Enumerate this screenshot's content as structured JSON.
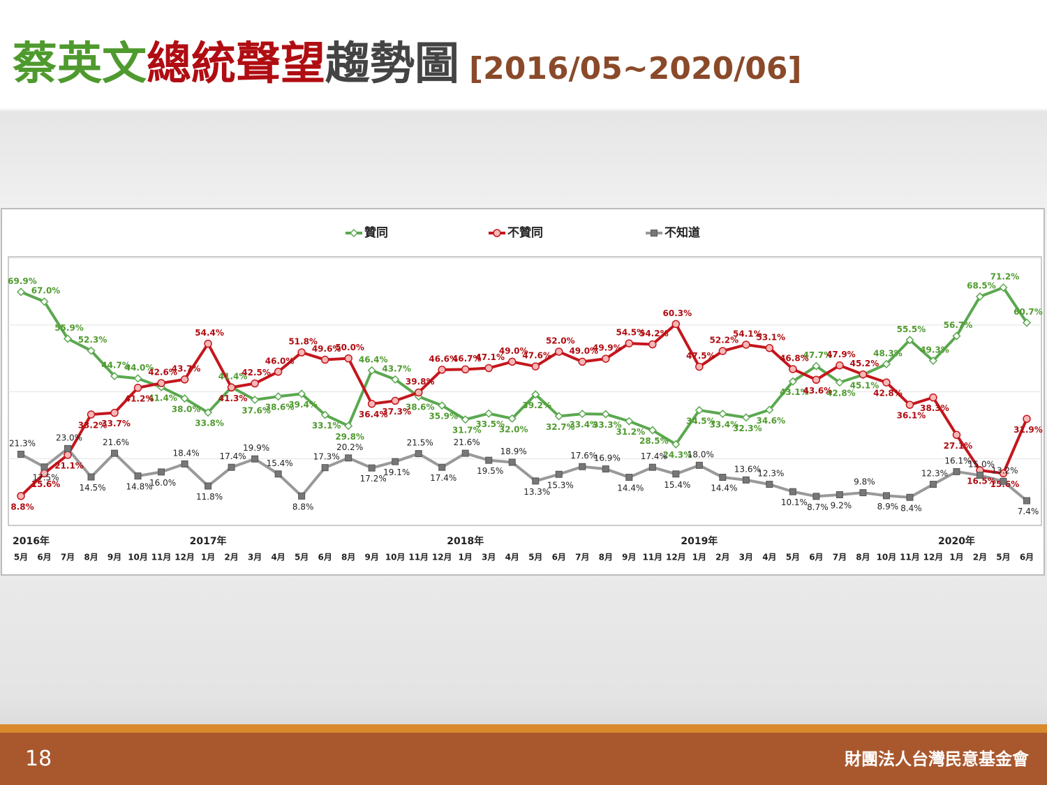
{
  "header": {
    "title_part1": "蔡英文",
    "title_part2": "總統聲望",
    "title_part3": "趨勢圖",
    "title_range": "[2016/05~2020/06]"
  },
  "footer": {
    "page_number": "18",
    "organization": "財團法人台灣民意基金會"
  },
  "chart_data": {
    "type": "line",
    "categories": [
      "5月",
      "6月",
      "7月",
      "8月",
      "9月",
      "10月",
      "11月",
      "12月",
      "1月",
      "2月",
      "3月",
      "4月",
      "5月",
      "6月",
      "8月",
      "9月",
      "10月",
      "11月",
      "12月",
      "1月",
      "3月",
      "4月",
      "5月",
      "6月",
      "7月",
      "8月",
      "9月",
      "11月",
      "12月",
      "1月",
      "2月",
      "3月",
      "4月",
      "5月",
      "6月",
      "7月",
      "8月",
      "10月",
      "11月",
      "12月",
      "1月",
      "2月",
      "5月",
      "6月"
    ],
    "years": [
      "2016年",
      null,
      null,
      null,
      null,
      null,
      null,
      null,
      "2017年",
      null,
      null,
      null,
      null,
      null,
      null,
      null,
      null,
      null,
      null,
      "2018年",
      null,
      null,
      null,
      null,
      null,
      null,
      null,
      null,
      null,
      "2019年",
      null,
      null,
      null,
      null,
      null,
      null,
      null,
      null,
      null,
      null,
      "2020年",
      null,
      null,
      null
    ],
    "ylim": [
      0,
      80
    ],
    "yticks": [
      20,
      40,
      60,
      80
    ],
    "grid": true,
    "legend": "top",
    "series": [
      {
        "name": "贊同",
        "color": "#5aa84f",
        "marker": "diamond",
        "values": [
          69.9,
          67.0,
          55.9,
          52.3,
          44.7,
          44.0,
          41.4,
          38.0,
          33.8,
          41.4,
          37.6,
          38.6,
          39.4,
          33.1,
          29.8,
          46.4,
          43.7,
          38.6,
          35.9,
          31.7,
          33.5,
          32.0,
          39.2,
          32.7,
          33.4,
          33.3,
          31.2,
          28.5,
          24.3,
          34.5,
          33.4,
          32.3,
          34.6,
          43.1,
          47.7,
          42.8,
          45.1,
          48.3,
          55.5,
          49.3,
          56.7,
          68.5,
          71.2,
          60.7
        ],
        "value_labels": [
          "69.9%",
          "67.0%",
          "55.9%",
          "52.3%",
          "44.7%",
          "44.0%",
          "41.4%",
          "38.0%",
          "33.8%",
          "41.4%",
          "37.6%",
          "38.6%",
          "39.4%",
          "33.1%",
          "29.8%",
          "46.4%",
          "43.7%",
          "38.6%",
          "35.9%",
          "31.7%",
          "33.5%",
          "32.0%",
          "39.2%",
          "32.7%",
          "33.4%",
          "33.3%",
          "31.2%",
          "28.5%",
          "24.3%",
          "34.5%",
          "33.4%",
          "32.3%",
          "34.6%",
          "43.1%",
          "47.7%",
          "42.8%",
          "45.1%",
          "48.3%",
          "55.5%",
          "49.3%",
          "56.7%",
          "68.5%",
          "71.2%",
          "60.7%"
        ]
      },
      {
        "name": "不贊同",
        "color": "#c4161c",
        "marker": "circle",
        "values": [
          8.8,
          15.6,
          21.1,
          33.2,
          33.7,
          41.2,
          42.6,
          43.7,
          54.4,
          41.3,
          42.5,
          46.0,
          51.8,
          49.6,
          50.0,
          36.4,
          37.3,
          39.8,
          46.6,
          46.7,
          47.1,
          49.0,
          47.6,
          52.0,
          49.0,
          49.9,
          54.5,
          54.2,
          60.3,
          47.5,
          52.2,
          54.1,
          53.1,
          46.8,
          43.6,
          47.9,
          45.2,
          42.8,
          36.1,
          38.3,
          27.1,
          16.5,
          15.6,
          31.9
        ],
        "value_labels": [
          "8.8%",
          "15.6%",
          "21.1%",
          "33.2%",
          "33.7%",
          "41.2%",
          "42.6%",
          "43.7%",
          "54.4%",
          "41.3%",
          "42.5%",
          "46.0%",
          "51.8%",
          "49.6%",
          "50.0%",
          "36.4%",
          "37.3%",
          "39.8%",
          "46.6%",
          "46.7%",
          "47.1%",
          "49.0%",
          "47.6%",
          "52.0%",
          "49.0%",
          "49.9%",
          "54.5%",
          "54.2%",
          "60.3%",
          "47.5%",
          "52.2%",
          "54.1%",
          "53.1%",
          "46.8%",
          "43.6%",
          "47.9%",
          "45.2%",
          "42.8%",
          "36.1%",
          "38.3%",
          "27.1%",
          "16.5%",
          "15.6%",
          "31.9%"
        ]
      },
      {
        "name": "不知道",
        "color": "#999999",
        "marker": "square",
        "values": [
          21.3,
          17.5,
          23.0,
          14.5,
          21.6,
          14.8,
          16.0,
          18.4,
          11.8,
          17.4,
          19.9,
          15.4,
          8.8,
          17.3,
          20.2,
          17.2,
          19.1,
          21.5,
          17.4,
          21.6,
          19.5,
          18.9,
          13.3,
          15.3,
          17.6,
          16.9,
          14.4,
          17.4,
          15.4,
          18.0,
          14.4,
          13.6,
          12.3,
          10.1,
          8.7,
          9.2,
          9.8,
          8.9,
          8.4,
          12.3,
          16.1,
          15.0,
          13.2,
          7.4
        ],
        "value_labels": [
          "21.3%",
          "17.5%",
          "23.0%",
          "14.5%",
          "21.6%",
          "14.8%",
          "16.0%",
          "18.4%",
          "11.8%",
          "17.4%",
          "19.9%",
          "15.4%",
          "8.8%",
          "17.3%",
          "20.2%",
          "17.2%",
          "19.1%",
          "21.5%",
          "17.4%",
          "21.6%",
          "19.5%",
          "18.9%",
          "13.3%",
          "15.3%",
          "17.6%",
          "16.9%",
          "14.4%",
          "17.4%",
          "15.4%",
          "18.0%",
          "14.4%",
          "13.6%",
          "12.3%",
          "10.1%",
          "8.7%",
          "9.2%",
          "9.8%",
          "8.9%",
          "8.4%",
          "12.3%",
          "16.1%",
          "15.0%",
          "13.2%",
          "7.4%"
        ]
      }
    ]
  }
}
